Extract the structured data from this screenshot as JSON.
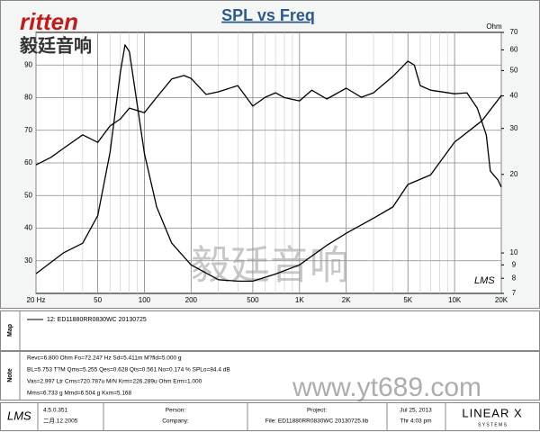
{
  "header": {
    "logo": "ritten",
    "logo_cn": "毅廷音响"
  },
  "chart_data": {
    "type": "line",
    "title": "SPL vs Freq",
    "y2_label": "Ohm",
    "watermark": "LMS",
    "xlog": true,
    "y2log": true,
    "grid": true,
    "xlim": [
      20,
      20000
    ],
    "ylim": [
      20,
      100
    ],
    "y2lim": [
      7,
      70
    ],
    "xticks": [
      {
        "value": 20,
        "label": "20 Hz"
      },
      50,
      100,
      200,
      500,
      {
        "value": 1000,
        "label": "1K"
      },
      {
        "value": 2000,
        "label": "2K"
      },
      {
        "value": 5000,
        "label": "5K"
      },
      {
        "value": 10000,
        "label": "10K"
      },
      {
        "value": 20000,
        "label": "20K"
      }
    ],
    "yticks": [
      30,
      40,
      50,
      60,
      70,
      80,
      90
    ],
    "y2ticks": [
      7,
      8,
      9,
      10,
      20,
      30,
      40,
      50,
      60,
      70
    ],
    "series": [
      {
        "color": "#000000",
        "x": [
          20,
          25,
          30,
          40,
          50,
          60,
          70,
          80,
          100,
          120,
          150,
          180,
          200,
          250,
          300,
          400,
          500,
          600,
          700,
          800,
          1000,
          1200,
          1500,
          2000,
          2500,
          3000,
          4000,
          5000,
          5500,
          6000,
          7000,
          10000,
          12000,
          14000,
          16000,
          17000,
          19000,
          20000
        ],
        "values": [
          59.4,
          61.7,
          64.4,
          68.6,
          66.3,
          71.3,
          73.5,
          76.8,
          75.4,
          80.1,
          85.7,
          86.8,
          85.9,
          81,
          81.8,
          83.7,
          77.4,
          80.1,
          81.5,
          80,
          79,
          82.3,
          79.6,
          82.9,
          80.1,
          81.5,
          86.5,
          91.2,
          90,
          83.7,
          82.3,
          81.2,
          81.5,
          76.8,
          68.6,
          57.5,
          54.8,
          52.6
        ]
      },
      {
        "color": "#000000",
        "axis": "y2",
        "x": [
          20,
          30,
          40,
          50,
          60,
          70,
          75,
          80,
          100,
          120,
          150,
          200,
          300,
          400,
          500,
          700,
          1000,
          1500,
          2000,
          3000,
          4000,
          5000,
          7000,
          10000,
          15000,
          20000
        ],
        "values": [
          8.33,
          10,
          10.9,
          13.9,
          24.2,
          49.4,
          62.7,
          59,
          24,
          15,
          10.9,
          9,
          7.9,
          7.8,
          7.8,
          8.3,
          9,
          10.7,
          11.9,
          13.6,
          15,
          18.3,
          19.9,
          26.6,
          32.1,
          40.1
        ]
      }
    ]
  },
  "map": {
    "label": "Map",
    "entry": "12: ED11880RR0830WC  20130725"
  },
  "note": {
    "label": "Note",
    "lines": [
      "Revc=6.800 Ohm  Fo=72.247 Hz  Sd=5.411m M?fld=5.000 g",
      "BL=5.753 T?M  Qms=5.255  Qes=0.628  Qts=0.561  No=0.174 %  SPLo=84.4 dB",
      "Vas=2.997 Ltr  Cms=720.787u M/N  Krm=226.289u Ohm  Erm=1.000",
      "Mms=6.733 g  Mmd=6.504 g  Kxm=5.168"
    ]
  },
  "watermarks": [
    "毅廷音响",
    "www.yt689.com"
  ],
  "footer": {
    "app": "LMS",
    "version": "4.5.0.351",
    "date_built": "二月.12.2005",
    "person": "Person:",
    "company": "Company:",
    "project": "Project:",
    "file": "File: ED11880RR0830WC  20130725.lib",
    "date": "Jul 25, 2013",
    "time": "Thr  4:03 pm",
    "brand": "LINEAR X",
    "brand_sub": "S Y S T E M S"
  }
}
